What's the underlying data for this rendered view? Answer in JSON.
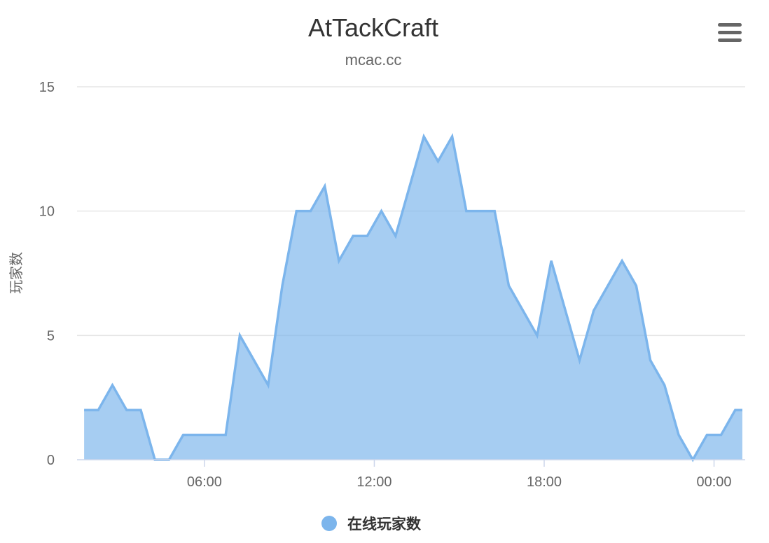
{
  "menu": {
    "icon": "hamburger-menu-icon"
  },
  "chart_data": {
    "type": "area",
    "title": "AtTackCraft",
    "subtitle": "mcac.cc",
    "xlabel": "",
    "ylabel": "玩家数",
    "xlim": [
      1.5,
      25.1
    ],
    "ylim": [
      0,
      15
    ],
    "grid": true,
    "legend_position": "bottom-center",
    "x_ticks": [
      {
        "value": 6,
        "label": "06:00"
      },
      {
        "value": 12,
        "label": "12:00"
      },
      {
        "value": 18,
        "label": "18:00"
      },
      {
        "value": 24,
        "label": "00:00"
      }
    ],
    "y_ticks": [
      {
        "value": 0,
        "label": "0"
      },
      {
        "value": 5,
        "label": "5"
      },
      {
        "value": 10,
        "label": "10"
      },
      {
        "value": 15,
        "label": "15"
      }
    ],
    "series": [
      {
        "name": "在线玩家数",
        "color": "#7cb5ec",
        "x": [
          1.75,
          2.25,
          2.75,
          3.25,
          3.75,
          4.25,
          4.75,
          5.25,
          5.75,
          6.25,
          6.75,
          7.25,
          7.75,
          8.25,
          8.75,
          9.25,
          9.75,
          10.25,
          10.75,
          11.25,
          11.75,
          12.25,
          12.75,
          13.25,
          13.75,
          14.25,
          14.75,
          15.25,
          15.75,
          16.25,
          16.75,
          17.25,
          17.75,
          18.25,
          18.75,
          19.25,
          19.75,
          20.25,
          20.75,
          21.25,
          21.75,
          22.25,
          22.75,
          23.25,
          23.75,
          24.25,
          24.75,
          25.0
        ],
        "values": [
          2,
          2,
          3,
          2,
          2,
          0,
          0,
          1,
          1,
          1,
          1,
          5,
          4,
          3,
          7,
          10,
          10,
          11,
          8,
          9,
          9,
          10,
          9,
          11,
          13,
          12,
          13,
          10,
          10,
          10,
          7,
          6,
          5,
          8,
          6,
          4,
          6,
          7,
          8,
          7,
          4,
          3,
          1,
          0,
          1,
          1,
          2,
          2
        ]
      }
    ]
  }
}
